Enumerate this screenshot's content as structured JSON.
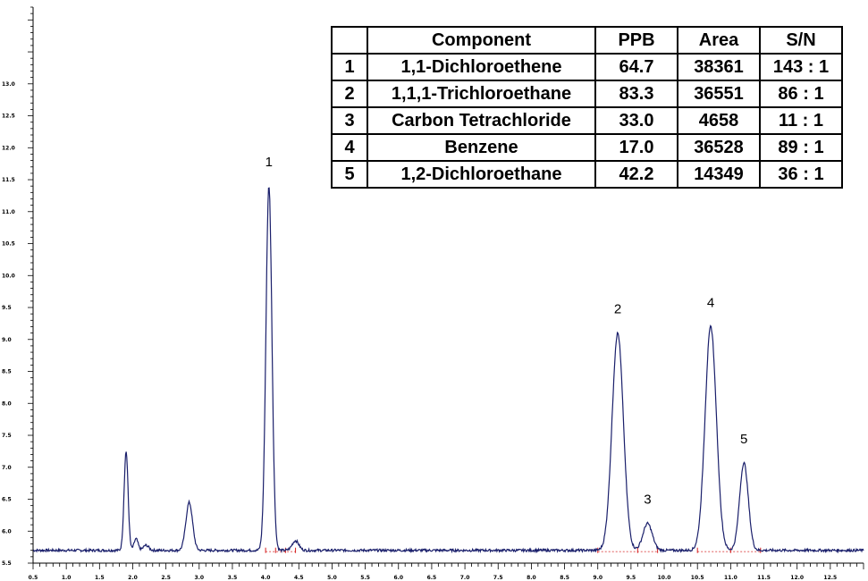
{
  "chart_data": {
    "type": "line",
    "title": "",
    "xlabel": "",
    "ylabel": "",
    "xlim": [
      0.5,
      13.0
    ],
    "ylim": [
      5.5,
      14.2
    ],
    "x_ticks": [
      "0.5",
      "1.0",
      "1.5",
      "2.0",
      "2.5",
      "3.0",
      "3.5",
      "4.0",
      "4.5",
      "5.0",
      "5.5",
      "6.0",
      "6.5",
      "7.0",
      "7.5",
      "8.0",
      "8.5",
      "9.0",
      "9.5",
      "10.0",
      "10.5",
      "11.0",
      "11.5",
      "12.0",
      "12.5"
    ],
    "y_ticks": [
      "5.5",
      "6.0",
      "6.5",
      "7.0",
      "7.5",
      "8.0",
      "8.5",
      "9.0",
      "9.5",
      "10.0",
      "10.5",
      "11.0",
      "11.5",
      "12.0",
      "12.5",
      "13.0"
    ],
    "baseline": 5.7,
    "peaks": [
      {
        "label": "",
        "rt": 1.9,
        "height": 7.25,
        "width": 0.03
      },
      {
        "label": "",
        "rt": 2.05,
        "height": 5.88,
        "width": 0.03
      },
      {
        "label": "",
        "rt": 2.2,
        "height": 5.78,
        "width": 0.04
      },
      {
        "label": "",
        "rt": 2.85,
        "height": 6.45,
        "width": 0.05
      },
      {
        "label": "1",
        "rt": 4.05,
        "height": 11.4,
        "width": 0.045
      },
      {
        "label": "",
        "rt": 4.45,
        "height": 5.85,
        "width": 0.05
      },
      {
        "label": "2",
        "rt": 9.3,
        "height": 9.1,
        "width": 0.085
      },
      {
        "label": "3",
        "rt": 9.75,
        "height": 6.12,
        "width": 0.07
      },
      {
        "label": "4",
        "rt": 10.7,
        "height": 9.2,
        "width": 0.085
      },
      {
        "label": "5",
        "rt": 11.2,
        "height": 7.07,
        "width": 0.065
      }
    ],
    "integration_markers": [
      4.0,
      4.15,
      4.3,
      4.45,
      9.0,
      9.6,
      9.9,
      10.5,
      11.0,
      11.45
    ]
  },
  "table": {
    "headers": [
      "",
      "Component",
      "PPB",
      "Area",
      "S/N"
    ],
    "rows": [
      [
        "1",
        "1,1-Dichloroethene",
        "64.7",
        "38361",
        "143 : 1"
      ],
      [
        "2",
        "1,1,1-Trichloroethane",
        "83.3",
        "36551",
        "86 : 1"
      ],
      [
        "3",
        "Carbon Tetrachloride",
        "33.0",
        "4658",
        "11 : 1"
      ],
      [
        "4",
        "Benzene",
        "17.0",
        "36528",
        "89 : 1"
      ],
      [
        "5",
        "1,2-Dichloroethane",
        "42.2",
        "14349",
        "36 : 1"
      ]
    ]
  },
  "colors": {
    "trace": "#1a1f6b",
    "baseline_markers": "#d62020",
    "axis": "#000000"
  }
}
